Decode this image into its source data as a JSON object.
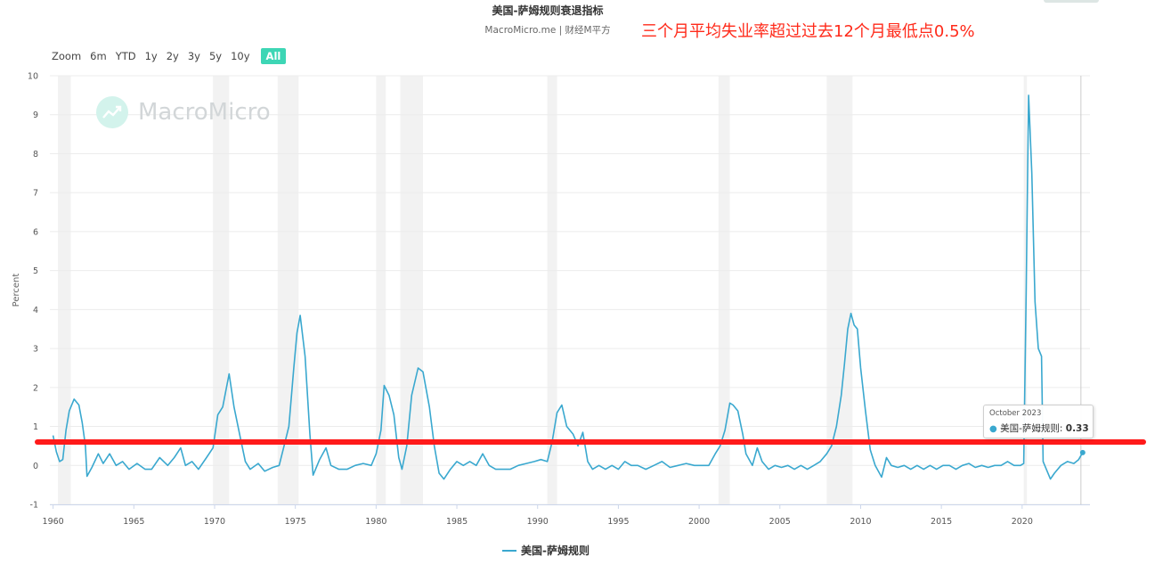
{
  "header": {
    "title": "美国-萨姆规则衰退指标",
    "subtitle": "MacroMicro.me | 财经M平方",
    "annotation": "三个月平均失业率超过过去12个月最低点0.5%"
  },
  "range_selector": {
    "label": "Zoom",
    "buttons": [
      "6m",
      "YTD",
      "1y",
      "2y",
      "3y",
      "5y",
      "10y",
      "All"
    ],
    "active": "All"
  },
  "watermark": {
    "text": "MacroMicro"
  },
  "tooltip": {
    "date": "October 2023",
    "series": "美国-萨姆规则",
    "value": "0.33"
  },
  "legend": {
    "label": "美国-萨姆规则"
  },
  "colors": {
    "series": "#3aa8cf",
    "recession_band": "#f2f2f2",
    "threshold_line": "#ff1a1a",
    "annotation": "#ff2a1a",
    "active_button": "#3dd6b5"
  },
  "chart_data": {
    "type": "line",
    "title": "美国-萨姆规则衰退指标",
    "ylabel": "Percent",
    "xlabel": "",
    "xlim": [
      1959.8,
      2024.2
    ],
    "ylim": [
      -1,
      10
    ],
    "yticks": [
      -1,
      0,
      1,
      2,
      3,
      4,
      5,
      6,
      7,
      8,
      9,
      10
    ],
    "xticks": [
      1960,
      1965,
      1970,
      1975,
      1980,
      1985,
      1990,
      1995,
      2000,
      2005,
      2010,
      2015,
      2020
    ],
    "grid": true,
    "legend_position": "bottom-center",
    "threshold": 0.6,
    "recessions": [
      [
        1960.3,
        1961.1
      ],
      [
        1969.9,
        1970.9
      ],
      [
        1973.9,
        1975.2
      ],
      [
        1980.0,
        1980.6
      ],
      [
        1981.5,
        1982.9
      ],
      [
        1990.6,
        1991.2
      ],
      [
        2001.2,
        2001.9
      ],
      [
        2007.9,
        2009.5
      ],
      [
        2020.1,
        2020.3
      ]
    ],
    "series": [
      {
        "name": "美国-萨姆规则",
        "points": [
          [
            1960.0,
            0.77
          ],
          [
            1960.2,
            0.35
          ],
          [
            1960.4,
            0.1
          ],
          [
            1960.6,
            0.15
          ],
          [
            1960.8,
            0.9
          ],
          [
            1961.0,
            1.4
          ],
          [
            1961.3,
            1.7
          ],
          [
            1961.6,
            1.55
          ],
          [
            1961.8,
            1.1
          ],
          [
            1962.0,
            0.5
          ],
          [
            1962.1,
            -0.28
          ],
          [
            1962.4,
            -0.05
          ],
          [
            1962.8,
            0.3
          ],
          [
            1963.1,
            0.05
          ],
          [
            1963.5,
            0.3
          ],
          [
            1963.9,
            0.0
          ],
          [
            1964.3,
            0.1
          ],
          [
            1964.7,
            -0.1
          ],
          [
            1965.2,
            0.05
          ],
          [
            1965.7,
            -0.1
          ],
          [
            1966.1,
            -0.1
          ],
          [
            1966.6,
            0.2
          ],
          [
            1967.1,
            0.0
          ],
          [
            1967.5,
            0.2
          ],
          [
            1967.9,
            0.45
          ],
          [
            1968.2,
            0.0
          ],
          [
            1968.6,
            0.1
          ],
          [
            1969.0,
            -0.1
          ],
          [
            1969.5,
            0.2
          ],
          [
            1969.9,
            0.45
          ],
          [
            1970.2,
            1.3
          ],
          [
            1970.5,
            1.5
          ],
          [
            1970.9,
            2.35
          ],
          [
            1971.2,
            1.5
          ],
          [
            1971.6,
            0.7
          ],
          [
            1971.9,
            0.1
          ],
          [
            1972.2,
            -0.1
          ],
          [
            1972.7,
            0.05
          ],
          [
            1973.1,
            -0.15
          ],
          [
            1973.6,
            -0.05
          ],
          [
            1974.0,
            0.0
          ],
          [
            1974.3,
            0.5
          ],
          [
            1974.6,
            1.0
          ],
          [
            1974.9,
            2.5
          ],
          [
            1975.1,
            3.4
          ],
          [
            1975.3,
            3.85
          ],
          [
            1975.6,
            2.8
          ],
          [
            1975.9,
            0.8
          ],
          [
            1976.1,
            -0.25
          ],
          [
            1976.5,
            0.15
          ],
          [
            1976.9,
            0.45
          ],
          [
            1977.2,
            0.0
          ],
          [
            1977.7,
            -0.1
          ],
          [
            1978.2,
            -0.1
          ],
          [
            1978.7,
            0.0
          ],
          [
            1979.2,
            0.05
          ],
          [
            1979.7,
            0.0
          ],
          [
            1980.0,
            0.3
          ],
          [
            1980.3,
            0.9
          ],
          [
            1980.5,
            2.05
          ],
          [
            1980.8,
            1.8
          ],
          [
            1981.1,
            1.3
          ],
          [
            1981.4,
            0.2
          ],
          [
            1981.6,
            -0.1
          ],
          [
            1981.9,
            0.5
          ],
          [
            1982.2,
            1.8
          ],
          [
            1982.6,
            2.5
          ],
          [
            1982.9,
            2.4
          ],
          [
            1983.3,
            1.5
          ],
          [
            1983.6,
            0.5
          ],
          [
            1983.9,
            -0.2
          ],
          [
            1984.2,
            -0.35
          ],
          [
            1984.6,
            -0.1
          ],
          [
            1985.0,
            0.1
          ],
          [
            1985.4,
            0.0
          ],
          [
            1985.8,
            0.1
          ],
          [
            1986.2,
            0.0
          ],
          [
            1986.6,
            0.3
          ],
          [
            1987.0,
            0.0
          ],
          [
            1987.4,
            -0.1
          ],
          [
            1987.8,
            -0.1
          ],
          [
            1988.3,
            -0.1
          ],
          [
            1988.8,
            0.0
          ],
          [
            1989.3,
            0.05
          ],
          [
            1989.8,
            0.1
          ],
          [
            1990.2,
            0.15
          ],
          [
            1990.6,
            0.1
          ],
          [
            1990.9,
            0.6
          ],
          [
            1991.2,
            1.35
          ],
          [
            1991.5,
            1.55
          ],
          [
            1991.8,
            1.0
          ],
          [
            1992.2,
            0.8
          ],
          [
            1992.5,
            0.5
          ],
          [
            1992.8,
            0.85
          ],
          [
            1993.1,
            0.1
          ],
          [
            1993.4,
            -0.1
          ],
          [
            1993.8,
            0.0
          ],
          [
            1994.2,
            -0.1
          ],
          [
            1994.6,
            0.0
          ],
          [
            1995.0,
            -0.1
          ],
          [
            1995.4,
            0.1
          ],
          [
            1995.8,
            0.0
          ],
          [
            1996.2,
            0.0
          ],
          [
            1996.7,
            -0.1
          ],
          [
            1997.2,
            0.0
          ],
          [
            1997.7,
            0.1
          ],
          [
            1998.2,
            -0.05
          ],
          [
            1998.7,
            0.0
          ],
          [
            1999.2,
            0.05
          ],
          [
            1999.7,
            0.0
          ],
          [
            2000.2,
            0.0
          ],
          [
            2000.6,
            0.0
          ],
          [
            2001.0,
            0.3
          ],
          [
            2001.3,
            0.5
          ],
          [
            2001.6,
            0.9
          ],
          [
            2001.9,
            1.6
          ],
          [
            2002.1,
            1.55
          ],
          [
            2002.4,
            1.4
          ],
          [
            2002.7,
            0.8
          ],
          [
            2002.9,
            0.3
          ],
          [
            2003.3,
            0.0
          ],
          [
            2003.6,
            0.45
          ],
          [
            2003.9,
            0.1
          ],
          [
            2004.3,
            -0.1
          ],
          [
            2004.7,
            0.0
          ],
          [
            2005.1,
            -0.05
          ],
          [
            2005.5,
            0.0
          ],
          [
            2005.9,
            -0.1
          ],
          [
            2006.3,
            0.0
          ],
          [
            2006.7,
            -0.1
          ],
          [
            2007.1,
            0.0
          ],
          [
            2007.5,
            0.1
          ],
          [
            2007.9,
            0.3
          ],
          [
            2008.2,
            0.5
          ],
          [
            2008.5,
            1.0
          ],
          [
            2008.8,
            1.8
          ],
          [
            2009.0,
            2.6
          ],
          [
            2009.2,
            3.5
          ],
          [
            2009.4,
            3.9
          ],
          [
            2009.6,
            3.6
          ],
          [
            2009.8,
            3.5
          ],
          [
            2010.0,
            2.5
          ],
          [
            2010.3,
            1.4
          ],
          [
            2010.6,
            0.4
          ],
          [
            2010.9,
            0.0
          ],
          [
            2011.3,
            -0.3
          ],
          [
            2011.6,
            0.2
          ],
          [
            2011.9,
            0.0
          ],
          [
            2012.3,
            -0.05
          ],
          [
            2012.7,
            0.0
          ],
          [
            2013.1,
            -0.1
          ],
          [
            2013.5,
            0.0
          ],
          [
            2013.9,
            -0.1
          ],
          [
            2014.3,
            0.0
          ],
          [
            2014.7,
            -0.1
          ],
          [
            2015.1,
            0.0
          ],
          [
            2015.5,
            0.0
          ],
          [
            2015.9,
            -0.1
          ],
          [
            2016.3,
            0.0
          ],
          [
            2016.7,
            0.05
          ],
          [
            2017.1,
            -0.05
          ],
          [
            2017.5,
            0.0
          ],
          [
            2017.9,
            -0.05
          ],
          [
            2018.3,
            0.0
          ],
          [
            2018.7,
            0.0
          ],
          [
            2019.1,
            0.1
          ],
          [
            2019.5,
            0.0
          ],
          [
            2019.9,
            0.0
          ],
          [
            2020.1,
            0.05
          ],
          [
            2020.25,
            4.5
          ],
          [
            2020.4,
            9.5
          ],
          [
            2020.6,
            7.5
          ],
          [
            2020.8,
            4.2
          ],
          [
            2021.0,
            3.0
          ],
          [
            2021.2,
            2.8
          ],
          [
            2021.3,
            0.1
          ],
          [
            2021.5,
            -0.1
          ],
          [
            2021.75,
            -0.35
          ],
          [
            2022.0,
            -0.2
          ],
          [
            2022.4,
            0.0
          ],
          [
            2022.8,
            0.1
          ],
          [
            2023.2,
            0.05
          ],
          [
            2023.5,
            0.15
          ],
          [
            2023.75,
            0.33
          ]
        ]
      }
    ]
  }
}
